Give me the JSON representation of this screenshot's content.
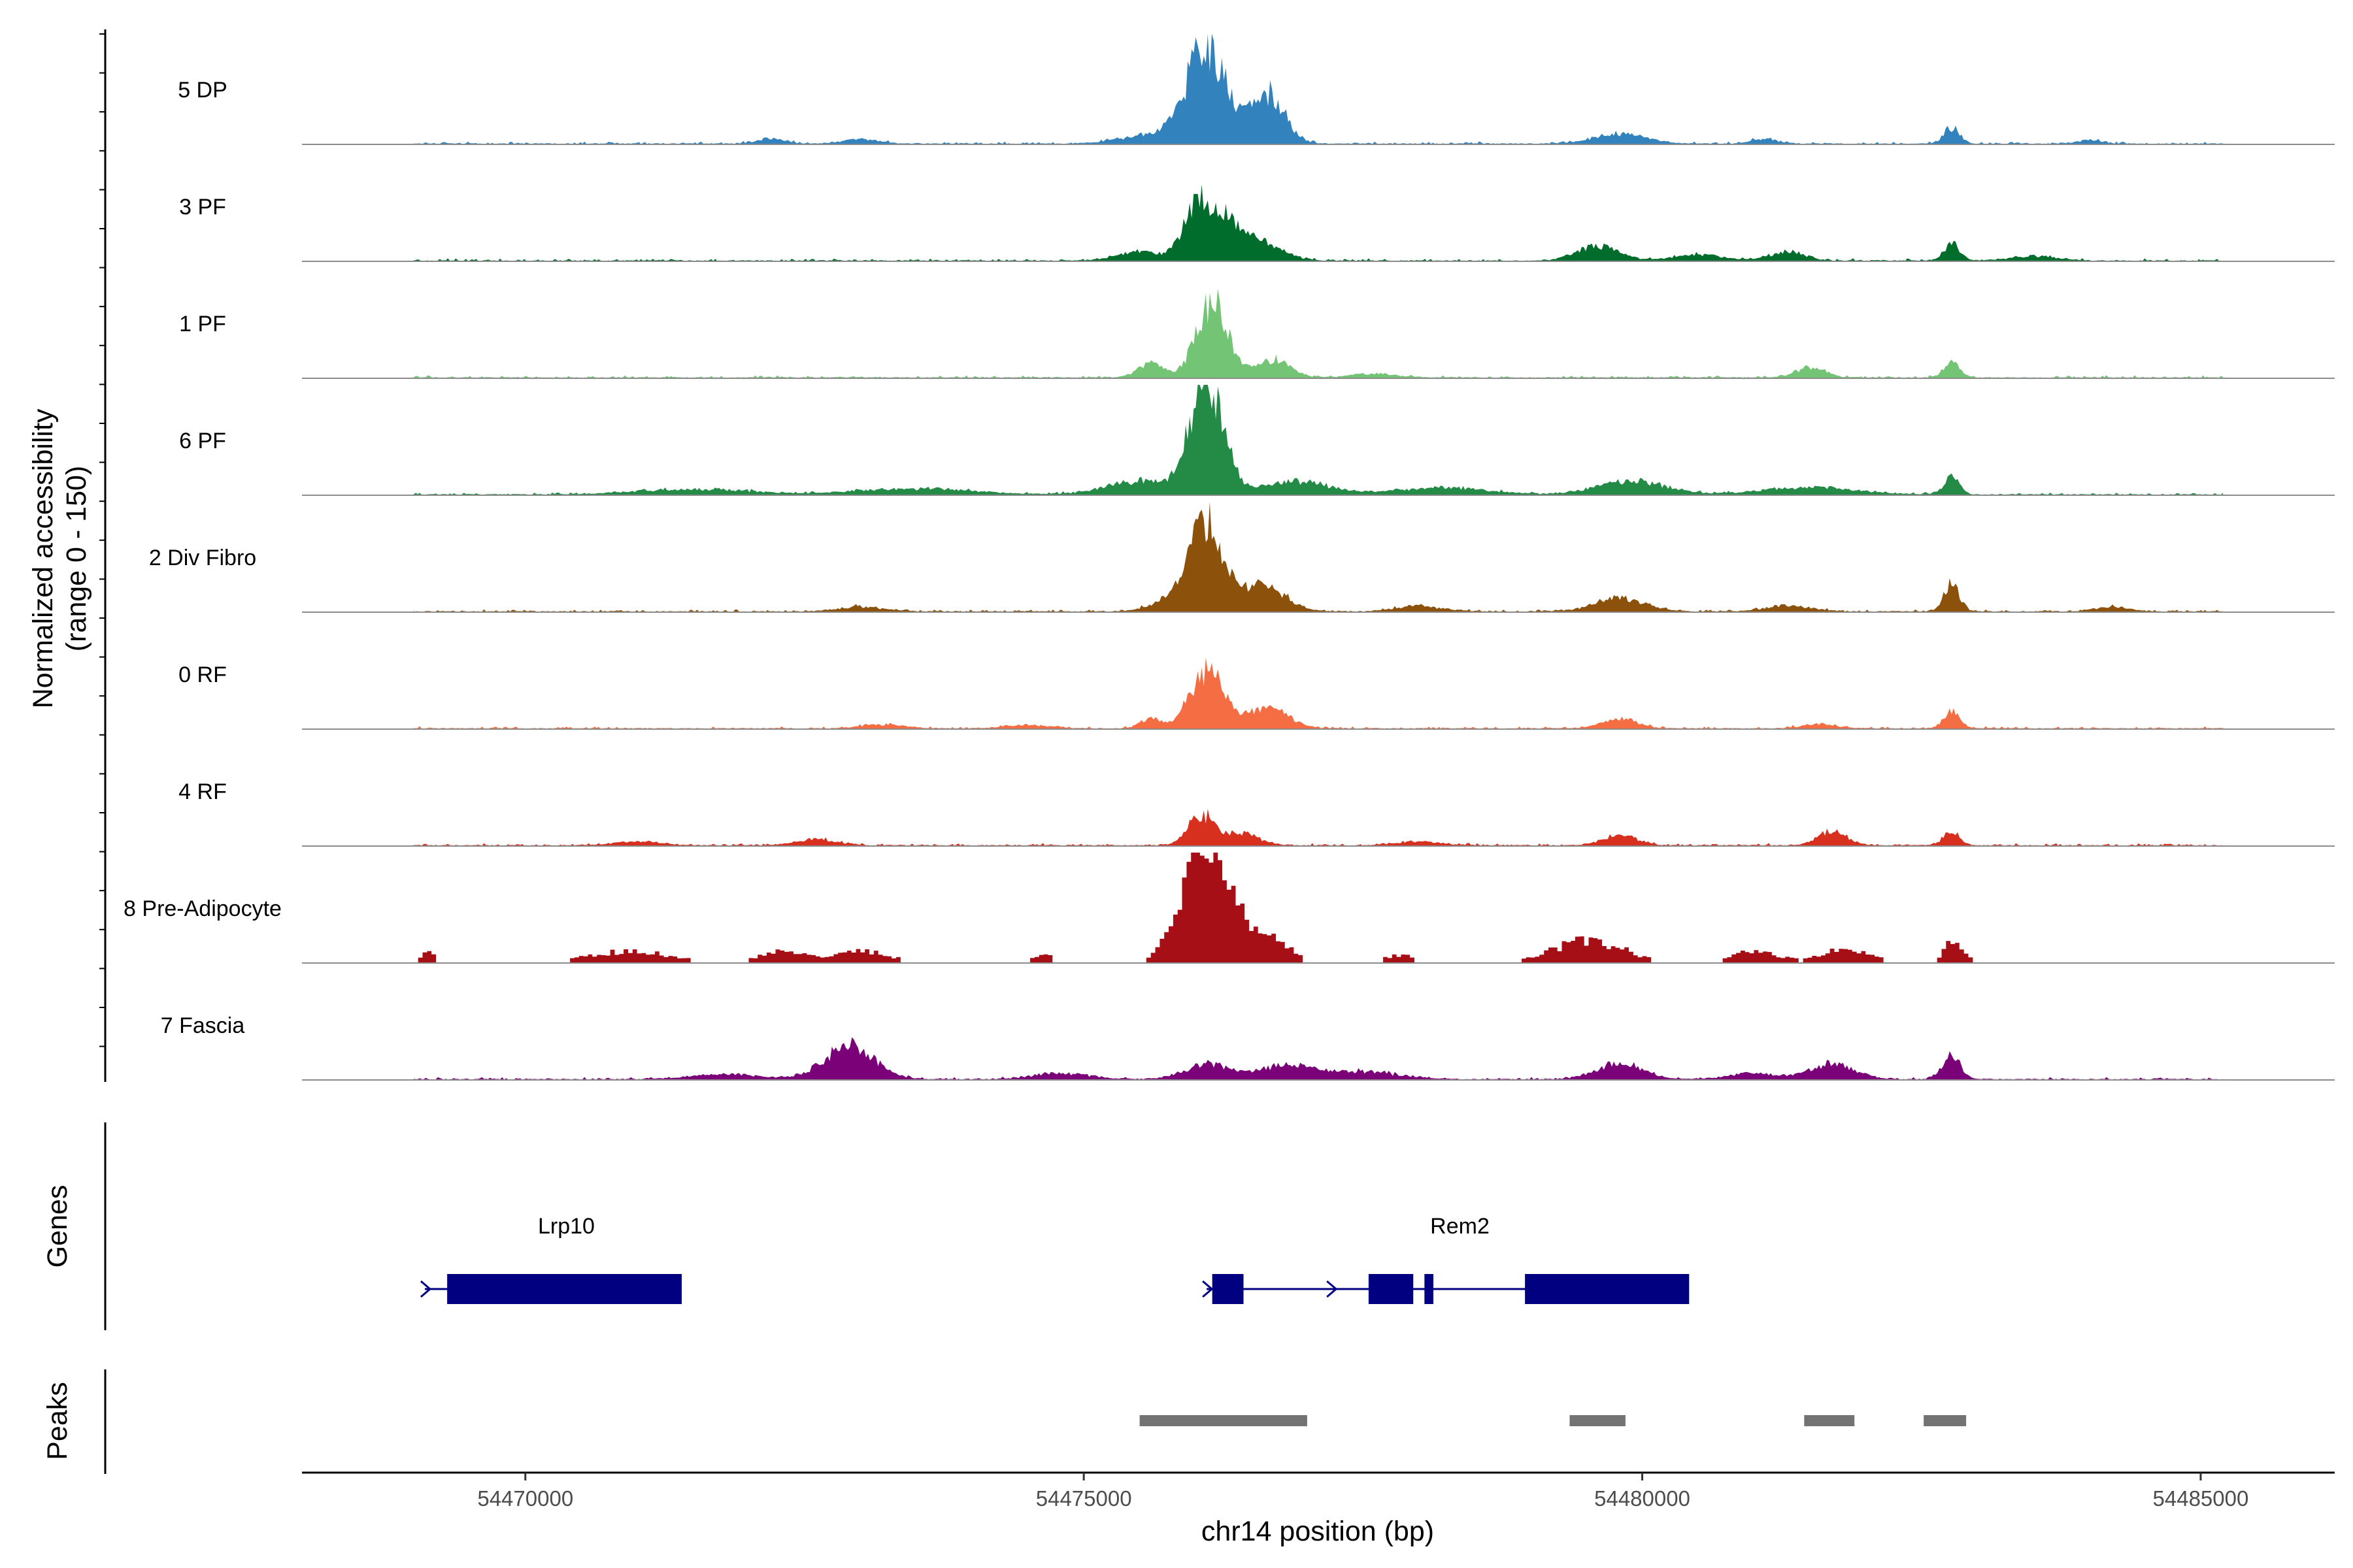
{
  "chart_data": {
    "type": "area",
    "chromosome": "chr14",
    "xlabel": "chr14 position (bp)",
    "ylabel_line1": "Normalized accessibility",
    "ylabel_line2": "(range 0 - 150)",
    "y_range": [
      0,
      150
    ],
    "xlim": [
      54468000,
      54486200
    ],
    "x_ticks": [
      54470000,
      54475000,
      54480000,
      54485000
    ],
    "x_tick_labels": [
      "54470000",
      "54475000",
      "54480000",
      "54485000"
    ],
    "genes_panel_label": "Genes",
    "peaks_panel_label": "Peaks",
    "tracks": [
      {
        "name": "5 DP",
        "color": "#3182BD",
        "style": "smooth",
        "peaks": [
          [
            54476100,
            130,
            180
          ],
          [
            54476650,
            68,
            150
          ],
          [
            54475600,
            12,
            250
          ],
          [
            54482770,
            22,
            70
          ],
          [
            54479800,
            14,
            220
          ],
          [
            54473000,
            6,
            150
          ],
          [
            54472200,
            7,
            120
          ],
          [
            54481100,
            6,
            120
          ],
          [
            54484000,
            5,
            100
          ]
        ]
      },
      {
        "name": "3 PF",
        "color": "#006D2C",
        "style": "smooth",
        "peaks": [
          [
            54476000,
            60,
            120
          ],
          [
            54476250,
            52,
            170
          ],
          [
            54476600,
            20,
            200
          ],
          [
            54475500,
            12,
            200
          ],
          [
            54479600,
            20,
            180
          ],
          [
            54481300,
            12,
            150
          ],
          [
            54482770,
            24,
            70
          ],
          [
            54480500,
            8,
            220
          ],
          [
            54483500,
            6,
            200
          ]
        ]
      },
      {
        "name": "1 PF",
        "color": "#74C476",
        "style": "smooth",
        "peaks": [
          [
            54476150,
            103,
            140
          ],
          [
            54475600,
            18,
            120
          ],
          [
            54476700,
            24,
            150
          ],
          [
            54481500,
            14,
            130
          ],
          [
            54482770,
            20,
            70
          ],
          [
            54477600,
            5,
            200
          ]
        ]
      },
      {
        "name": "6 PF",
        "color": "#238B45",
        "style": "smooth",
        "peaks": [
          [
            54476100,
            150,
            150
          ],
          [
            54475500,
            18,
            300
          ],
          [
            54476900,
            18,
            300
          ],
          [
            54479900,
            18,
            300
          ],
          [
            54482770,
            22,
            70
          ],
          [
            54481500,
            10,
            400
          ],
          [
            54478200,
            9,
            400
          ],
          [
            54473500,
            8,
            500
          ],
          [
            54471500,
            7,
            500
          ]
        ]
      },
      {
        "name": "2 Div Fibro",
        "color": "#8C510A",
        "style": "smooth",
        "peaks": [
          [
            54476100,
            118,
            150
          ],
          [
            54476600,
            34,
            200
          ],
          [
            54475800,
            14,
            200
          ],
          [
            54479800,
            18,
            220
          ],
          [
            54482770,
            36,
            70
          ],
          [
            54481300,
            8,
            200
          ],
          [
            54478000,
            7,
            200
          ],
          [
            54473000,
            6,
            200
          ],
          [
            54484200,
            6,
            150
          ]
        ]
      },
      {
        "name": "0 RF",
        "color": "#F46D43",
        "style": "smooth",
        "peaks": [
          [
            54476100,
            78,
            150
          ],
          [
            54476650,
            28,
            180
          ],
          [
            54475600,
            12,
            100
          ],
          [
            54479800,
            14,
            150
          ],
          [
            54482770,
            22,
            70
          ],
          [
            54481600,
            6,
            150
          ],
          [
            54473200,
            5,
            200
          ],
          [
            54474500,
            4,
            200
          ]
        ]
      },
      {
        "name": "4 RF",
        "color": "#D7301F",
        "style": "smooth",
        "peaks": [
          [
            54476050,
            40,
            120
          ],
          [
            54476400,
            16,
            150
          ],
          [
            54479800,
            14,
            150
          ],
          [
            54481700,
            20,
            120
          ],
          [
            54482770,
            20,
            70
          ],
          [
            54472600,
            8,
            180
          ],
          [
            54471000,
            5,
            200
          ],
          [
            54478000,
            5,
            200
          ]
        ]
      },
      {
        "name": "8 Pre-Adipocyte",
        "color": "#A50F15",
        "style": "blocky",
        "peaks": [
          [
            54476050,
            130,
            200
          ],
          [
            54476300,
            40,
            250
          ],
          [
            54476700,
            20,
            150
          ],
          [
            54479500,
            30,
            300
          ],
          [
            54482770,
            34,
            80
          ],
          [
            54481800,
            18,
            200
          ],
          [
            54481000,
            15,
            200
          ],
          [
            54470900,
            15,
            350
          ],
          [
            54472300,
            15,
            200
          ],
          [
            54473000,
            15,
            220
          ],
          [
            54469100,
            14,
            60
          ],
          [
            54477800,
            10,
            120
          ],
          [
            54474600,
            10,
            100
          ]
        ]
      },
      {
        "name": "7 Fascia",
        "color": "#7A0177",
        "style": "smooth",
        "peaks": [
          [
            54472900,
            45,
            220
          ],
          [
            54476100,
            20,
            200
          ],
          [
            54476800,
            18,
            250
          ],
          [
            54479800,
            22,
            200
          ],
          [
            54482770,
            32,
            80
          ],
          [
            54481700,
            20,
            200
          ],
          [
            54477500,
            10,
            300
          ],
          [
            54474800,
            8,
            250
          ],
          [
            54481000,
            8,
            200
          ],
          [
            54471800,
            7,
            300
          ]
        ]
      }
    ],
    "genes": [
      {
        "name": "Lrp10",
        "start": 54469100,
        "end": 54471400,
        "strand": "+",
        "exons": [
          [
            54469300,
            54471400
          ]
        ]
      },
      {
        "name": "Rem2",
        "start": 54476100,
        "end": 54480400,
        "strand": "+",
        "exons": [
          [
            54476150,
            54476430
          ],
          [
            54477550,
            54477950
          ],
          [
            54478050,
            54478130
          ],
          [
            54478950,
            54480420
          ]
        ]
      }
    ],
    "peak_regions": [
      [
        54475500,
        54477000
      ],
      [
        54479350,
        54479850
      ],
      [
        54481450,
        54481900
      ],
      [
        54482520,
        54482900
      ]
    ]
  }
}
